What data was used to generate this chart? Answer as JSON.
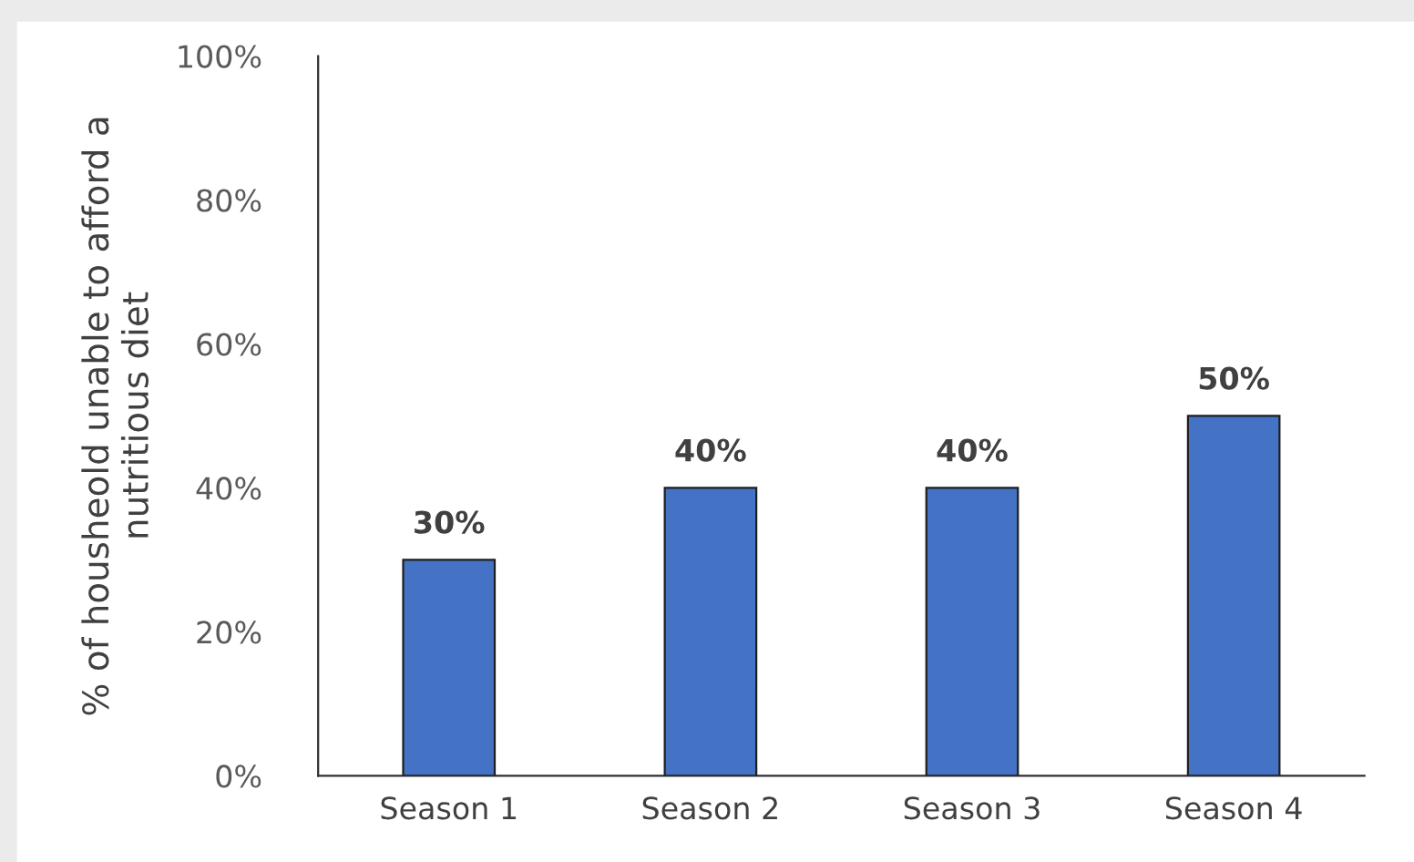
{
  "chart_data": {
    "type": "bar",
    "ylabel": "% of housheold unable to afford a\nnutritious diet",
    "categories": [
      "Season 1",
      "Season 2",
      "Season 3",
      "Season 4"
    ],
    "values": [
      30,
      40,
      40,
      50
    ],
    "color": "#4472c4",
    "value_labels": [
      "30%",
      "40%",
      "40%",
      "50%"
    ],
    "ylim": [
      0,
      100
    ],
    "yticks": [
      {
        "value": 0,
        "label": "0%"
      },
      {
        "value": 20,
        "label": "20%"
      },
      {
        "value": 40,
        "label": "40%"
      },
      {
        "value": 60,
        "label": "60%"
      },
      {
        "value": 80,
        "label": "80%"
      },
      {
        "value": 100,
        "label": "100%"
      }
    ],
    "grid": false,
    "legend": false
  }
}
